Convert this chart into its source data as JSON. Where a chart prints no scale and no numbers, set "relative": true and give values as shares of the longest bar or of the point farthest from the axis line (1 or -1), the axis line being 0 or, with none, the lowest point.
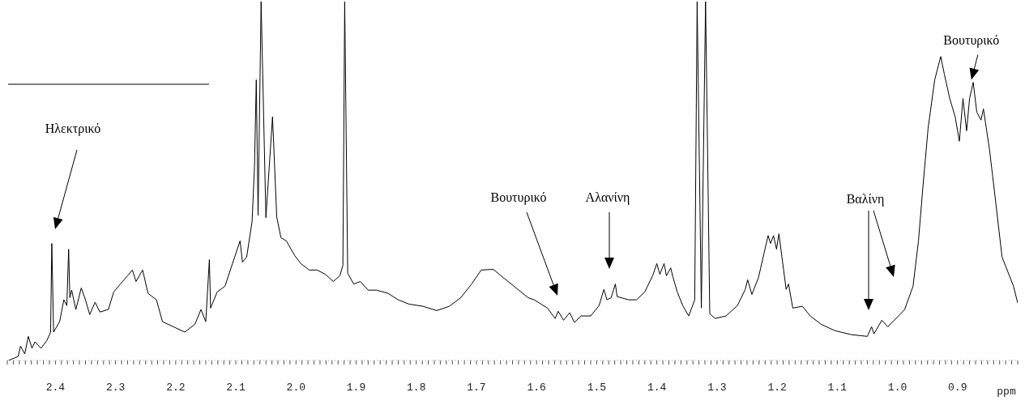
{
  "chart_data": {
    "type": "line",
    "relative": true,
    "xlabel": "ppm",
    "xlim": [
      2.48,
      0.8
    ],
    "xticks": [
      {
        "value": 2.48,
        "label": null
      },
      {
        "value": 2.47,
        "label": null
      },
      {
        "value": 2.46,
        "label": null
      },
      {
        "value": 2.45,
        "label": null
      },
      {
        "value": 2.44,
        "label": null
      },
      {
        "value": 2.43,
        "label": null
      },
      {
        "value": 2.42,
        "label": null
      },
      {
        "value": 2.41,
        "label": null
      },
      2.4,
      {
        "value": 2.39,
        "label": null
      },
      {
        "value": 2.38,
        "label": null
      },
      {
        "value": 2.37,
        "label": null
      },
      {
        "value": 2.36,
        "label": null
      },
      {
        "value": 2.35,
        "label": null
      },
      {
        "value": 2.34,
        "label": null
      },
      {
        "value": 2.33,
        "label": null
      },
      {
        "value": 2.32,
        "label": null
      },
      {
        "value": 2.31,
        "label": null
      },
      2.3,
      {
        "value": 2.29,
        "label": null
      },
      {
        "value": 2.28,
        "label": null
      },
      {
        "value": 2.27,
        "label": null
      },
      {
        "value": 2.26,
        "label": null
      },
      {
        "value": 2.25,
        "label": null
      },
      {
        "value": 2.24,
        "label": null
      },
      {
        "value": 2.23,
        "label": null
      },
      {
        "value": 2.22,
        "label": null
      },
      {
        "value": 2.21,
        "label": null
      },
      2.2,
      {
        "value": 2.19,
        "label": null
      },
      {
        "value": 2.18,
        "label": null
      },
      {
        "value": 2.17,
        "label": null
      },
      {
        "value": 2.16,
        "label": null
      },
      {
        "value": 2.15,
        "label": null
      },
      {
        "value": 2.14,
        "label": null
      },
      {
        "value": 2.13,
        "label": null
      },
      {
        "value": 2.12,
        "label": null
      },
      {
        "value": 2.11,
        "label": null
      },
      2.1,
      {
        "value": 2.09,
        "label": null
      },
      {
        "value": 2.08,
        "label": null
      },
      {
        "value": 2.07,
        "label": null
      },
      {
        "value": 2.06,
        "label": null
      },
      {
        "value": 2.05,
        "label": null
      },
      {
        "value": 2.04,
        "label": null
      },
      {
        "value": 2.03,
        "label": null
      },
      {
        "value": 2.02,
        "label": null
      },
      {
        "value": 2.01,
        "label": null
      },
      {
        "value": 2,
        "label": "2.0"
      },
      {
        "value": 1.99,
        "label": null
      },
      {
        "value": 1.98,
        "label": null
      },
      {
        "value": 1.97,
        "label": null
      },
      {
        "value": 1.96,
        "label": null
      },
      {
        "value": 1.95,
        "label": null
      },
      {
        "value": 1.94,
        "label": null
      },
      {
        "value": 1.93,
        "label": null
      },
      {
        "value": 1.92,
        "label": null
      },
      {
        "value": 1.91,
        "label": null
      },
      1.9,
      {
        "value": 1.89,
        "label": null
      },
      {
        "value": 1.88,
        "label": null
      },
      {
        "value": 1.87,
        "label": null
      },
      {
        "value": 1.86,
        "label": null
      },
      {
        "value": 1.85,
        "label": null
      },
      {
        "value": 1.84,
        "label": null
      },
      {
        "value": 1.83,
        "label": null
      },
      {
        "value": 1.82,
        "label": null
      },
      {
        "value": 1.81,
        "label": null
      },
      1.8,
      {
        "value": 1.79,
        "label": null
      },
      {
        "value": 1.78,
        "label": null
      },
      {
        "value": 1.77,
        "label": null
      },
      {
        "value": 1.76,
        "label": null
      },
      {
        "value": 1.75,
        "label": null
      },
      {
        "value": 1.74,
        "label": null
      },
      {
        "value": 1.73,
        "label": null
      },
      {
        "value": 1.72,
        "label": null
      },
      {
        "value": 1.71,
        "label": null
      },
      1.7,
      {
        "value": 1.69,
        "label": null
      },
      {
        "value": 1.68,
        "label": null
      },
      {
        "value": 1.67,
        "label": null
      },
      {
        "value": 1.66,
        "label": null
      },
      {
        "value": 1.65,
        "label": null
      },
      {
        "value": 1.64,
        "label": null
      },
      {
        "value": 1.63,
        "label": null
      },
      {
        "value": 1.62,
        "label": null
      },
      {
        "value": 1.61,
        "label": null
      },
      1.6,
      {
        "value": 1.59,
        "label": null
      },
      {
        "value": 1.58,
        "label": null
      },
      {
        "value": 1.57,
        "label": null
      },
      {
        "value": 1.56,
        "label": null
      },
      {
        "value": 1.55,
        "label": null
      },
      {
        "value": 1.54,
        "label": null
      },
      {
        "value": 1.53,
        "label": null
      },
      {
        "value": 1.52,
        "label": null
      },
      {
        "value": 1.51,
        "label": null
      },
      1.5,
      {
        "value": 1.49,
        "label": null
      },
      {
        "value": 1.48,
        "label": null
      },
      {
        "value": 1.47,
        "label": null
      },
      {
        "value": 1.46,
        "label": null
      },
      {
        "value": 1.45,
        "label": null
      },
      {
        "value": 1.44,
        "label": null
      },
      {
        "value": 1.43,
        "label": null
      },
      {
        "value": 1.42,
        "label": null
      },
      {
        "value": 1.41,
        "label": null
      },
      1.4,
      {
        "value": 1.39,
        "label": null
      },
      {
        "value": 1.38,
        "label": null
      },
      {
        "value": 1.37,
        "label": null
      },
      {
        "value": 1.36,
        "label": null
      },
      {
        "value": 1.35,
        "label": null
      },
      {
        "value": 1.34,
        "label": null
      },
      {
        "value": 1.33,
        "label": null
      },
      {
        "value": 1.32,
        "label": null
      },
      {
        "value": 1.31,
        "label": null
      },
      1.3,
      {
        "value": 1.29,
        "label": null
      },
      {
        "value": 1.28,
        "label": null
      },
      {
        "value": 1.27,
        "label": null
      },
      {
        "value": 1.26,
        "label": null
      },
      {
        "value": 1.25,
        "label": null
      },
      {
        "value": 1.24,
        "label": null
      },
      {
        "value": 1.23,
        "label": null
      },
      {
        "value": 1.22,
        "label": null
      },
      {
        "value": 1.21,
        "label": null
      },
      1.2,
      {
        "value": 1.19,
        "label": null
      },
      {
        "value": 1.18,
        "label": null
      },
      {
        "value": 1.17,
        "label": null
      },
      {
        "value": 1.16,
        "label": null
      },
      {
        "value": 1.15,
        "label": null
      },
      {
        "value": 1.14,
        "label": null
      },
      {
        "value": 1.13,
        "label": null
      },
      {
        "value": 1.12,
        "label": null
      },
      {
        "value": 1.11,
        "label": null
      },
      1.1,
      {
        "value": 1.09,
        "label": null
      },
      {
        "value": 1.08,
        "label": null
      },
      {
        "value": 1.07,
        "label": null
      },
      {
        "value": 1.06,
        "label": null
      },
      {
        "value": 1.05,
        "label": null
      },
      {
        "value": 1.04,
        "label": null
      },
      {
        "value": 1.03,
        "label": null
      },
      {
        "value": 1.02,
        "label": null
      },
      {
        "value": 1.01,
        "label": null
      },
      {
        "value": 1,
        "label": "1.0"
      },
      {
        "value": 0.99,
        "label": null
      },
      {
        "value": 0.98,
        "label": null
      },
      {
        "value": 0.97,
        "label": null
      },
      {
        "value": 0.96,
        "label": null
      },
      {
        "value": 0.95,
        "label": null
      },
      {
        "value": 0.94,
        "label": null
      },
      {
        "value": 0.93,
        "label": null
      },
      {
        "value": 0.92,
        "label": null
      },
      {
        "value": 0.91,
        "label": null
      },
      0.9,
      {
        "value": 0.89,
        "label": null
      },
      {
        "value": 0.88,
        "label": null
      },
      {
        "value": 0.87,
        "label": null
      },
      {
        "value": 0.86,
        "label": null
      },
      {
        "value": 0.85,
        "label": null
      },
      {
        "value": 0.84,
        "label": null
      },
      {
        "value": 0.83,
        "label": null
      },
      {
        "value": 0.82,
        "label": null
      },
      {
        "value": 0.81,
        "label": null
      },
      {
        "value": 0.8,
        "label": null
      }
    ],
    "series": [
      {
        "color": "#000000",
        "x": [
          2.478,
          2.462,
          2.458,
          2.451,
          2.445,
          2.439,
          2.434,
          2.424,
          2.414,
          2.408,
          2.406,
          2.403,
          2.393,
          2.386,
          2.381,
          2.378,
          2.376,
          2.373,
          2.366,
          2.357,
          2.35,
          2.343,
          2.334,
          2.326,
          2.312,
          2.303,
          2.292,
          2.28,
          2.272,
          2.266,
          2.255,
          2.246,
          2.232,
          2.222,
          2.204,
          2.185,
          2.168,
          2.158,
          2.15,
          2.144,
          2.142,
          2.131,
          2.118,
          2.107,
          2.093,
          2.089,
          2.082,
          2.073,
          2.069,
          2.066,
          2.063,
          2.058,
          2.05,
          2.039,
          2.032,
          2.025,
          2.016,
          2.002,
          1.992,
          1.978,
          1.965,
          1.951,
          1.938,
          1.927,
          1.922,
          1.919,
          1.914,
          1.904,
          1.893,
          1.88,
          1.866,
          1.847,
          1.83,
          1.812,
          1.789,
          1.766,
          1.745,
          1.726,
          1.708,
          1.692,
          1.672,
          1.654,
          1.631,
          1.614,
          1.604,
          1.582,
          1.569,
          1.564,
          1.555,
          1.545,
          1.537,
          1.526,
          1.51,
          1.496,
          1.488,
          1.483,
          1.476,
          1.469,
          1.466,
          1.447,
          1.434,
          1.42,
          1.407,
          1.4,
          1.395,
          1.388,
          1.384,
          1.377,
          1.373,
          1.366,
          1.357,
          1.347,
          1.337,
          1.333,
          1.326,
          1.319,
          1.312,
          1.303,
          1.285,
          1.266,
          1.253,
          1.249,
          1.242,
          1.231,
          1.222,
          1.215,
          1.211,
          1.206,
          1.201,
          1.197,
          1.192,
          1.185,
          1.181,
          1.174,
          1.158,
          1.145,
          1.127,
          1.104,
          1.077,
          1.05,
          1.043,
          1.039,
          1.026,
          1.016,
          0.996,
          0.988,
          0.974,
          0.965,
          0.958,
          0.949,
          0.938,
          0.928,
          0.922,
          0.913,
          0.904,
          0.897,
          0.891,
          0.885,
          0.88,
          0.874,
          0.868,
          0.861,
          0.857,
          0.847,
          0.839,
          0.826,
          0.807,
          0.8
        ],
        "values": [
          0,
          0.011,
          0.04,
          0.018,
          0.067,
          0.034,
          0.052,
          0.034,
          0.056,
          0.079,
          0.326,
          0.079,
          0.108,
          0.169,
          0.153,
          0.31,
          0.175,
          0.196,
          0.142,
          0.202,
          0.169,
          0.128,
          0.162,
          0.135,
          0.142,
          0.191,
          0.213,
          0.236,
          0.252,
          0.22,
          0.252,
          0.187,
          0.169,
          0.108,
          0.094,
          0.079,
          0.101,
          0.142,
          0.108,
          0.281,
          0.146,
          0.191,
          0.207,
          0.263,
          0.333,
          0.274,
          0.288,
          0.387,
          0.539,
          0.782,
          0.404,
          1,
          0.398,
          0.679,
          0.4,
          0.342,
          0.333,
          0.292,
          0.27,
          0.252,
          0.252,
          0.24,
          0.22,
          0.236,
          0.265,
          1,
          0.243,
          0.213,
          0.22,
          0.196,
          0.196,
          0.187,
          0.169,
          0.157,
          0.151,
          0.139,
          0.151,
          0.175,
          0.213,
          0.252,
          0.254,
          0.229,
          0.198,
          0.175,
          0.169,
          0.146,
          0.117,
          0.137,
          0.112,
          0.133,
          0.106,
          0.124,
          0.124,
          0.153,
          0.198,
          0.169,
          0.175,
          0.213,
          0.178,
          0.169,
          0.169,
          0.191,
          0.236,
          0.27,
          0.24,
          0.27,
          0.236,
          0.258,
          0.231,
          0.191,
          0.153,
          0.124,
          0.169,
          1,
          0.146,
          1,
          0.13,
          0.117,
          0.124,
          0.153,
          0.198,
          0.225,
          0.184,
          0.231,
          0.297,
          0.348,
          0.326,
          0.348,
          0.31,
          0.353,
          0.288,
          0.198,
          0.213,
          0.146,
          0.151,
          0.124,
          0.101,
          0.083,
          0.072,
          0.067,
          0.094,
          0.074,
          0.112,
          0.094,
          0.128,
          0.142,
          0.207,
          0.333,
          0.476,
          0.647,
          0.782,
          0.847,
          0.798,
          0.73,
          0.679,
          0.611,
          0.73,
          0.64,
          0.73,
          0.775,
          0.692,
          0.67,
          0.701,
          0.589,
          0.476,
          0.288,
          0.207,
          0.16
        ]
      }
    ],
    "annotations": [
      "Ηλεκτρικό",
      "Βουτυρικό",
      "Αλανίνη",
      "Βαλίνη",
      {
        "text": "Βουτυρικό",
        "x": 0.877,
        "y": 0.782
      }
    ]
  }
}
